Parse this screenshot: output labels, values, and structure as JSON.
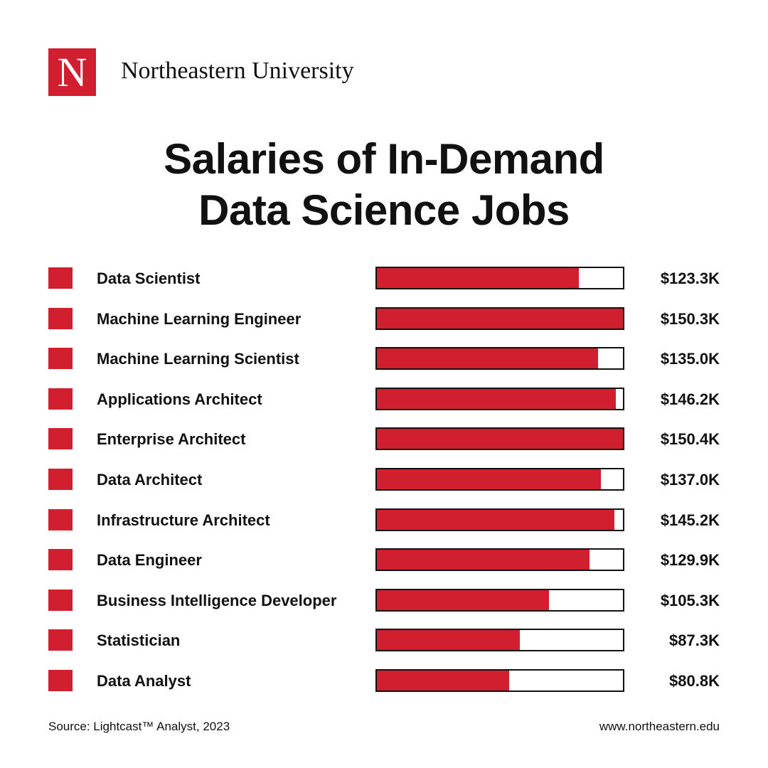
{
  "header": {
    "logo_letter": "N",
    "brand": "Northeastern University"
  },
  "chart_data": {
    "type": "bar",
    "orientation": "horizontal",
    "title": "Salaries of In-Demand Data Science Jobs",
    "categories": [
      "Data Scientist",
      "Machine Learning Engineer",
      "Machine Learning Scientist",
      "Applications Architect",
      "Enterprise Architect",
      "Data Architect",
      "Infrastructure Architect",
      "Data Engineer",
      "Business Intelligence Developer",
      "Statistician",
      "Data Analyst"
    ],
    "values": [
      123.3,
      150.3,
      135.0,
      146.2,
      150.4,
      137.0,
      145.2,
      129.9,
      105.3,
      87.3,
      80.8
    ],
    "value_labels": [
      "$123.3K",
      "$150.3K",
      "$135.0K",
      "$146.2K",
      "$150.4K",
      "$137.0K",
      "$145.2K",
      "$129.9K",
      "$105.3K",
      "$87.3K",
      "$80.8K"
    ],
    "color": "#d21f2f"
  },
  "footer": {
    "source": "Source: Lightcast™ Analyst, 2023",
    "url": "www.northeastern.edu"
  }
}
